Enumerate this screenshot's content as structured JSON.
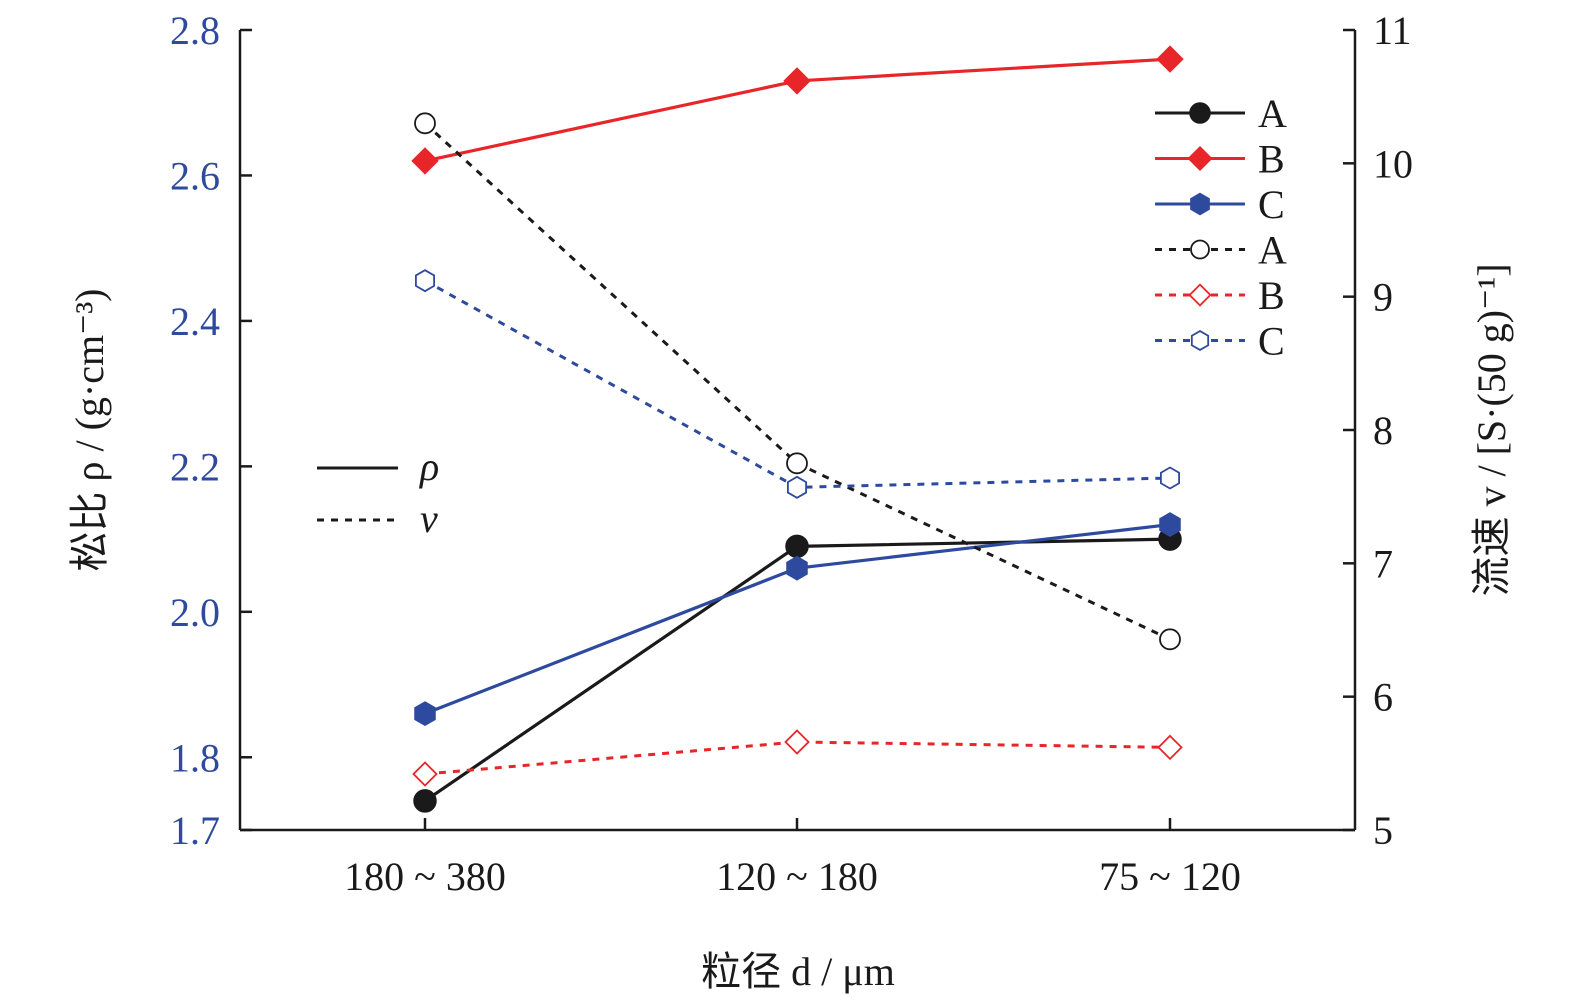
{
  "chart_data": {
    "type": "line",
    "categories": [
      "180 ~ 380",
      "120 ~ 180",
      "75 ~ 120"
    ],
    "xlabel": "粒径 d / μm",
    "ylabel_left": "松比 ρ / (g·cm⁻³)",
    "ylabel_right": "流速 v / [S·(50 g)⁻¹]",
    "ylim_left": [
      1.7,
      2.8
    ],
    "ylim_right": [
      5,
      11
    ],
    "yticks_left": [
      "1.7",
      "1.8",
      "2.0",
      "2.2",
      "2.4",
      "2.6",
      "2.8"
    ],
    "yticks_right": [
      "5",
      "6",
      "7",
      "8",
      "9",
      "10",
      "11"
    ],
    "grid": false,
    "legend_position": "top-right",
    "series": [
      {
        "name": "A",
        "axis": "left",
        "style": "solid",
        "marker": "circle",
        "filled": true,
        "color": "#1a1a1a",
        "values": [
          1.74,
          2.09,
          2.1
        ]
      },
      {
        "name": "B",
        "axis": "left",
        "style": "solid",
        "marker": "diamond",
        "filled": true,
        "color": "#E8262A",
        "values": [
          2.62,
          2.73,
          2.76
        ]
      },
      {
        "name": "C",
        "axis": "left",
        "style": "solid",
        "marker": "hexagon",
        "filled": true,
        "color": "#2E4A9E",
        "values": [
          1.86,
          2.06,
          2.12
        ]
      },
      {
        "name": "A",
        "axis": "right",
        "style": "dashed",
        "marker": "circle",
        "filled": false,
        "color": "#1a1a1a",
        "values": [
          10.3,
          7.75,
          6.43
        ]
      },
      {
        "name": "B",
        "axis": "right",
        "style": "dashed",
        "marker": "diamond",
        "filled": false,
        "color": "#E8262A",
        "values": [
          5.42,
          5.66,
          5.62
        ]
      },
      {
        "name": "C",
        "axis": "right",
        "style": "dashed",
        "marker": "hexagon",
        "filled": false,
        "color": "#2E4A9E",
        "values": [
          9.12,
          7.57,
          7.64
        ]
      }
    ],
    "style_legend": [
      {
        "label": "ρ",
        "style": "solid"
      },
      {
        "label": "v",
        "style": "dashed"
      }
    ]
  }
}
